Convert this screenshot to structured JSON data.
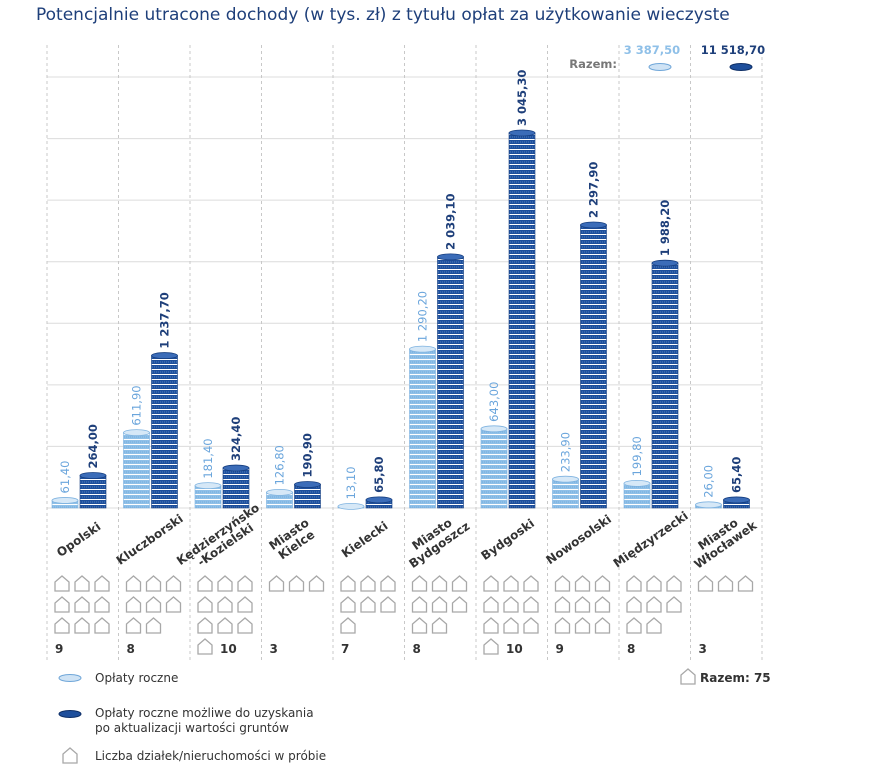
{
  "chart_data": {
    "type": "coin-bar",
    "title": "Potencjalnie utracone dochody (w tys. zł) z tytułu opłat za użytkowanie wieczyste",
    "categories": [
      "Opolski",
      "Kluczborski",
      "Kędzierzyńsko\n-Kozielski",
      "Miasto\nKielce",
      "Kielecki",
      "Miasto\nBydgoszcz",
      "Bydgoski",
      "Nowosolski",
      "Międzyrzecki",
      "Miasto\nWłocławek"
    ],
    "series": [
      {
        "name": "Opłaty roczne",
        "color": "#8fc0e8",
        "values": [
          61.4,
          611.9,
          181.4,
          126.8,
          13.1,
          1290.2,
          643.0,
          233.9,
          199.8,
          26.0
        ],
        "value_labels": [
          "61,40",
          "611,90",
          "181,40",
          "126,80",
          "13,10",
          "1 290,20",
          "643,00",
          "233,90",
          "199,80",
          "26,00"
        ]
      },
      {
        "name": "Opłaty roczne możliwe do uzyskania\npo aktualizacji wartości gruntów",
        "color": "#1e4f9c",
        "values": [
          264.0,
          1237.7,
          324.4,
          190.9,
          65.8,
          2039.1,
          3045.3,
          2297.9,
          1988.2,
          65.4
        ],
        "value_labels": [
          "264,00",
          "1 237,70",
          "324,40",
          "190,90",
          "65,80",
          "2 039,10",
          "3 045,30",
          "2 297,90",
          "1 988,20",
          "65,40"
        ]
      }
    ],
    "totals": {
      "label": "Razem:",
      "values": [
        3387.5,
        11518.7
      ],
      "value_labels": [
        "3 387,50",
        "11 518,70"
      ]
    },
    "parcels": {
      "name": "Liczba działek/nieruchomości w próbie",
      "values": [
        9,
        8,
        10,
        3,
        7,
        8,
        10,
        9,
        8,
        3
      ],
      "total_label": "Razem: 75",
      "total": 75
    },
    "ylim": [
      0,
      3500
    ],
    "yticks": [
      0,
      500,
      1000,
      1500,
      2000,
      2500,
      3000,
      3500
    ],
    "grid": true
  }
}
